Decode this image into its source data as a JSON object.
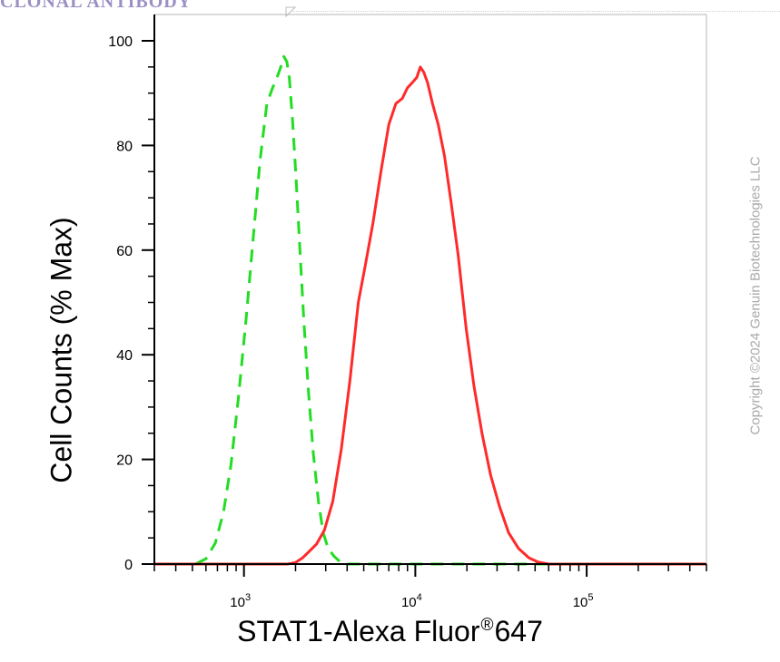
{
  "header": {
    "banner_text": "CLONAL ANTIBODY"
  },
  "watermark": {
    "copyright": "Copyright ©2024 Genuin Biotechnologies LLC"
  },
  "chart_data": {
    "type": "line",
    "title": "",
    "xlabel_main": "STAT1-Alexa Fluor",
    "xlabel_mark": "®",
    "xlabel_suffix": "647",
    "ylabel": "Cell Counts (% Max)",
    "x_scale": "log",
    "xlim": [
      300,
      500000
    ],
    "ylim": [
      0,
      100
    ],
    "y_ticks": [
      0,
      20,
      40,
      60,
      80,
      100
    ],
    "x_ticks": [
      {
        "base": "10",
        "exp": "3",
        "value": 1000
      },
      {
        "base": "10",
        "exp": "4",
        "value": 10000
      },
      {
        "base": "10",
        "exp": "5",
        "value": 100000
      }
    ],
    "grid": false,
    "legend": "none",
    "series": [
      {
        "style": "dashed",
        "color": "#22dd22",
        "points": [
          [
            300,
            0
          ],
          [
            520,
            0
          ],
          [
            600,
            1
          ],
          [
            680,
            4
          ],
          [
            760,
            10
          ],
          [
            840,
            19
          ],
          [
            930,
            32
          ],
          [
            1030,
            47
          ],
          [
            1130,
            62
          ],
          [
            1240,
            77
          ],
          [
            1360,
            88
          ],
          [
            1470,
            91
          ],
          [
            1560,
            93
          ],
          [
            1640,
            95
          ],
          [
            1710,
            97
          ],
          [
            1780,
            96
          ],
          [
            1840,
            93
          ],
          [
            1920,
            85
          ],
          [
            2020,
            73
          ],
          [
            2120,
            60
          ],
          [
            2240,
            46
          ],
          [
            2380,
            33
          ],
          [
            2540,
            21
          ],
          [
            2720,
            12
          ],
          [
            2900,
            6
          ],
          [
            3100,
            3
          ],
          [
            3350,
            1.5
          ],
          [
            3650,
            0.4
          ],
          [
            4000,
            0
          ],
          [
            500000,
            0
          ]
        ]
      },
      {
        "style": "solid",
        "color": "#ff2a2a",
        "points": [
          [
            300,
            0
          ],
          [
            1800,
            0
          ],
          [
            2000,
            0.3
          ],
          [
            2200,
            1.2
          ],
          [
            2400,
            2.4
          ],
          [
            2650,
            3.8
          ],
          [
            2950,
            6.5
          ],
          [
            3300,
            12
          ],
          [
            3700,
            22
          ],
          [
            4150,
            35
          ],
          [
            4650,
            50
          ],
          [
            5100,
            57
          ],
          [
            5650,
            65
          ],
          [
            6300,
            75
          ],
          [
            7000,
            84
          ],
          [
            7700,
            88
          ],
          [
            8400,
            89
          ],
          [
            9000,
            91
          ],
          [
            9600,
            92
          ],
          [
            10200,
            93
          ],
          [
            10700,
            95
          ],
          [
            11200,
            94
          ],
          [
            11800,
            92
          ],
          [
            12600,
            88
          ],
          [
            13600,
            84
          ],
          [
            14800,
            78
          ],
          [
            16200,
            69
          ],
          [
            17800,
            59
          ],
          [
            19800,
            45
          ],
          [
            22000,
            34
          ],
          [
            24500,
            25
          ],
          [
            27500,
            17
          ],
          [
            31000,
            11
          ],
          [
            35000,
            6
          ],
          [
            40000,
            3
          ],
          [
            46000,
            1.2
          ],
          [
            52000,
            0.4
          ],
          [
            60000,
            0
          ],
          [
            500000,
            0
          ]
        ]
      }
    ]
  }
}
